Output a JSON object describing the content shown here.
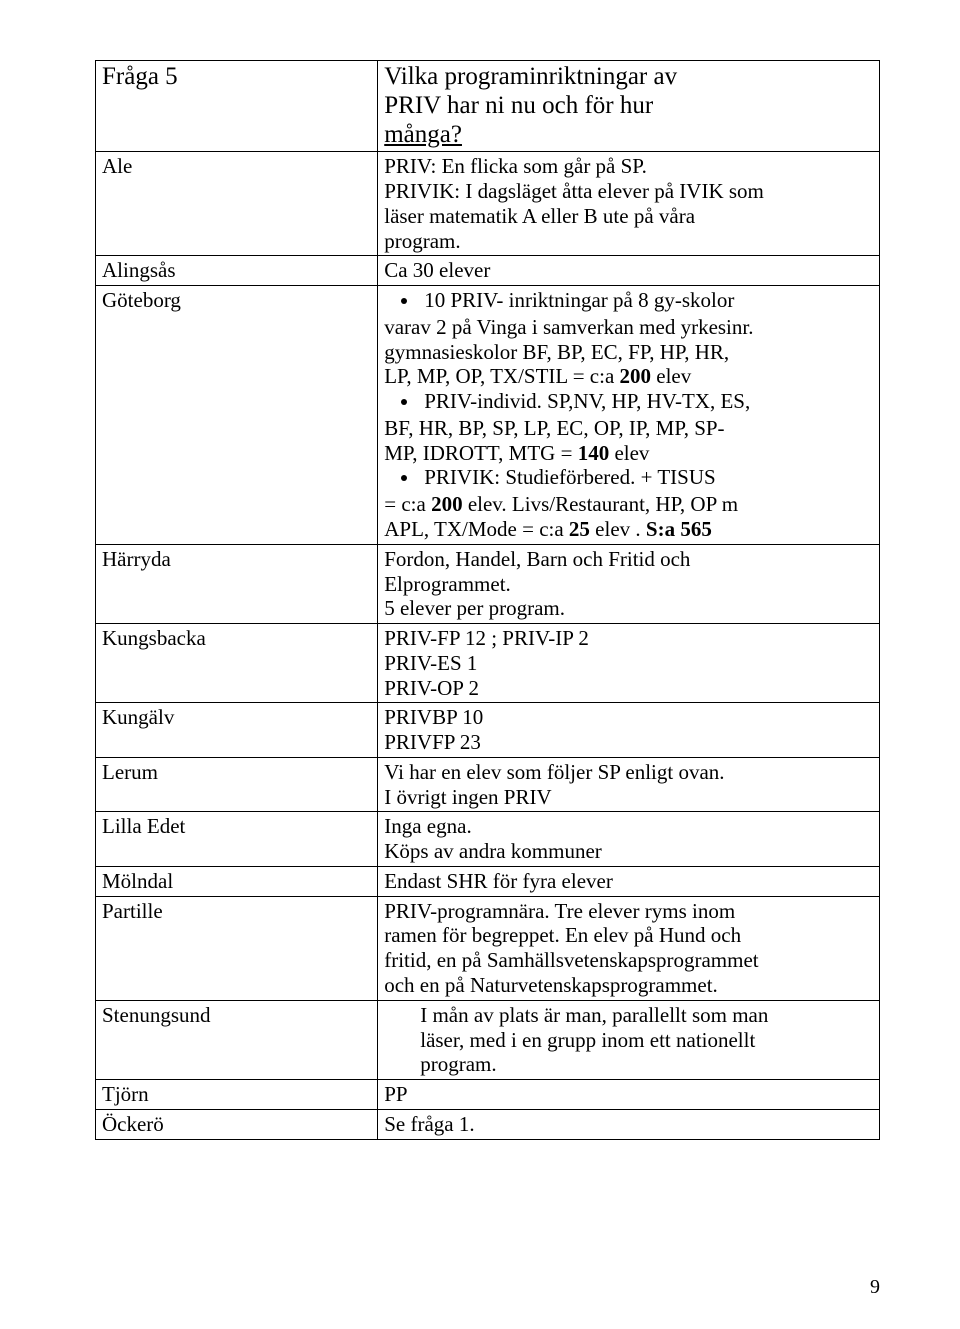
{
  "header": {
    "left": "Fråga 5",
    "right_line1": "Vilka programinriktningar av",
    "right_line2": "PRIV har ni nu och för hur",
    "right_line3_underlined": "många?"
  },
  "rows": {
    "ale": {
      "label": "Ale",
      "l1": "PRIV: En flicka som går på SP.",
      "l2": "PRIVIK: I dagsläget åtta elever på IVIK som",
      "l3": "läser matematik A eller B ute på våra",
      "l4": "program."
    },
    "alingsas": {
      "label": "Alingsås",
      "value": "Ca 30 elever"
    },
    "goteborg": {
      "label": "Göteborg",
      "b1_pre": "10 PRIV- inriktningar på 8 gy-skolor",
      "b1_l2": "varav 2 på Vinga i samverkan med yrkesinr.",
      "b1_l3": "gymnasieskolor BF, BP, EC, FP, HP, HR,",
      "b1_l4_pre": "LP, MP, OP, TX/STIL = c:a  ",
      "b1_l4_bold": "200",
      "b1_l4_post": " elev",
      "b2_pre": "PRIV-individ. SP,NV, HP, HV-TX, ES,",
      "b2_l2": "BF, HR, BP, SP, LP, EC, OP, IP, MP, SP-",
      "b2_l3_pre": "MP, IDROTT, MTG = ",
      "b2_l3_bold": "140",
      "b2_l3_post": " elev",
      "b3_pre": "PRIVIK: Studieförbered. + TISUS",
      "b3_l2_pre": "= c:a ",
      "b3_l2_bold": "200",
      "b3_l2_post": " elev. Livs/Restaurant, HP, OP m",
      "b3_l3_pre": "APL, TX/Mode =  c:a ",
      "b3_l3_bold1": "25",
      "b3_l3_mid": " elev . ",
      "b3_l3_bold2": "S:a 565"
    },
    "harryda": {
      "label": "Härryda",
      "l1": "Fordon, Handel, Barn och Fritid och",
      "l2": "Elprogrammet.",
      "l3": "5 elever per program."
    },
    "kungsbacka": {
      "label": "Kungsbacka",
      "l1": "PRIV-FP  12  ; PRIV-IP 2",
      "l2": "PRIV-ES 1",
      "l3": "PRIV-OP 2"
    },
    "kungalv": {
      "label": "Kungälv",
      "l1": "PRIVBP 10",
      "l2": "PRIVFP 23"
    },
    "lerum": {
      "label": "Lerum",
      "l1": "Vi har en elev som följer SP enligt ovan.",
      "l2": "I övrigt ingen PRIV"
    },
    "lillaedet": {
      "label": "Lilla Edet",
      "l1": "Inga egna.",
      "l2": "Köps av andra kommuner"
    },
    "molndal": {
      "label": "Mölndal",
      "value": "Endast SHR för fyra elever"
    },
    "partille": {
      "label": "Partille",
      "l1": "PRIV-programnära. Tre elever ryms inom",
      "l2": "ramen för begreppet. En elev på Hund och",
      "l3": "fritid, en på Samhällsvetenskapsprogrammet",
      "l4": "och en på Naturvetenskapsprogrammet."
    },
    "stenungsund": {
      "label": "Stenungsund",
      "l1": "I mån av plats är man, parallellt som man",
      "l2": "läser, med i en grupp inom ett nationellt",
      "l3": "program."
    },
    "tjorn": {
      "label": "Tjörn",
      "value": "PP"
    },
    "ockero": {
      "label": "Öckerö",
      "value": "Se fråga 1."
    }
  },
  "pagenum": "9"
}
